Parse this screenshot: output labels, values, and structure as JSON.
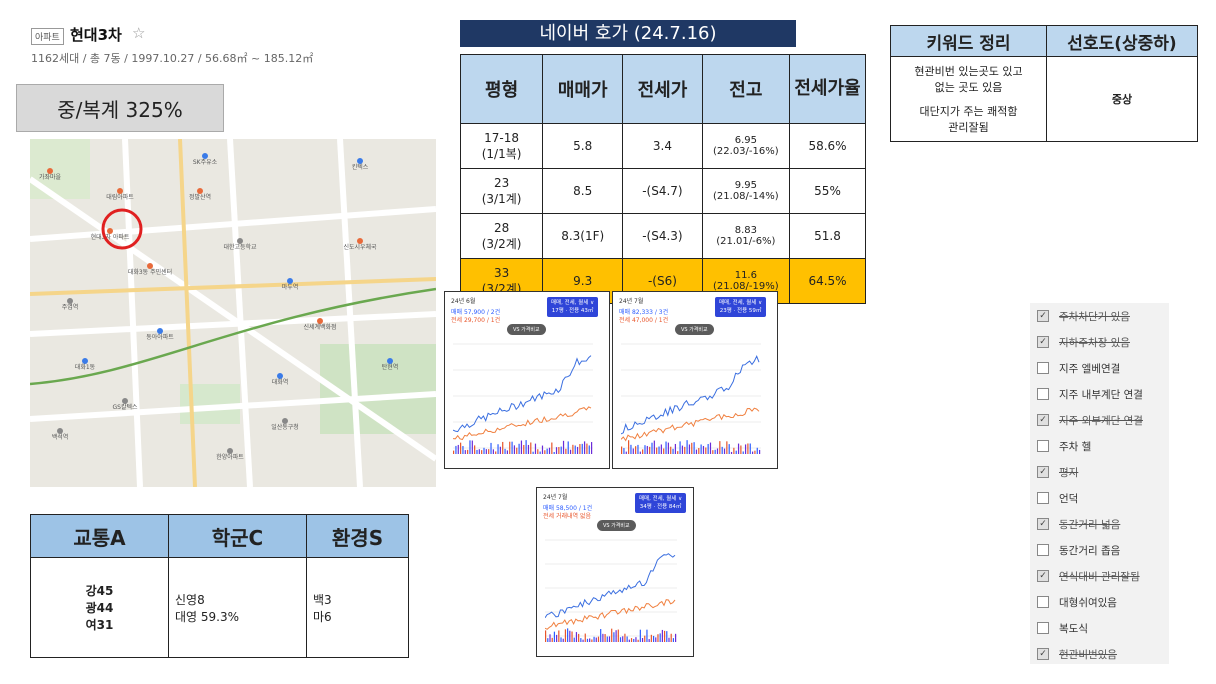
{
  "header": {
    "badge": "아파트",
    "name": "현대3차",
    "star": "☆",
    "meta": "1162세대 / 총 7동 / 1997.10.27 / 56.68㎡ ~ 185.12㎡",
    "ratio": "중/복계 325%"
  },
  "price_table": {
    "title": "네이버 호가 (24.7.16)",
    "headers": [
      "평형",
      "매매가",
      "전세가",
      "전고",
      "전세가율"
    ],
    "rows": [
      {
        "type": "17-18",
        "type2": "(1/1복)",
        "sale": "5.8",
        "jeonse": "3.4",
        "peak": "6.95",
        "peak_note": "(22.03/-16%)",
        "ratio": "58.6%"
      },
      {
        "type": "23",
        "type2": "(3/1계)",
        "sale": "8.5",
        "jeonse": "-(S4.7)",
        "peak": "9.95",
        "peak_note": "(21.08/-14%)",
        "ratio": "55%"
      },
      {
        "type": "28",
        "type2": "(3/2계)",
        "sale": "8.3(1F)",
        "jeonse": "-(S4.3)",
        "peak": "8.83",
        "peak_note": "(21.01/-6%)",
        "ratio": "51.8"
      },
      {
        "type": "33",
        "type2": "(3/2계)",
        "sale": "9.3",
        "jeonse": "-(S6)",
        "peak": "11.6",
        "peak_note": "(21.08/-19%)",
        "ratio": "64.5%"
      }
    ]
  },
  "keyword_table": {
    "headers": [
      "키워드 정리",
      "선호도(상중하)"
    ],
    "keyword_lines": [
      "현관비번 있는곳도 있고",
      "없는 곳도 있음",
      "",
      "대단지가 주는 쾌적함",
      "관리잘됨"
    ],
    "preference": "중상"
  },
  "scores": {
    "headers": [
      "교통A",
      "학군C",
      "환경S"
    ],
    "traffic": [
      "강45",
      "광44",
      "여31"
    ],
    "school": [
      "신영8",
      "대영 59.3%"
    ],
    "env": [
      "백3",
      "마6"
    ]
  },
  "checklist": [
    {
      "label": "주차차단기 있음",
      "checked": true
    },
    {
      "label": "지하주차장 있음",
      "checked": true
    },
    {
      "label": "지주 엘베연결",
      "checked": false
    },
    {
      "label": "지주 내부계단 연결",
      "checked": false
    },
    {
      "label": "지주 외부계단 연결",
      "checked": true
    },
    {
      "label": "주차 헬",
      "checked": false
    },
    {
      "label": "평지",
      "checked": true
    },
    {
      "label": "언덕",
      "checked": false
    },
    {
      "label": "동간거리 넓음",
      "checked": true
    },
    {
      "label": "동간거리 좁음",
      "checked": false
    },
    {
      "label": "연식대비 관리잘됨",
      "checked": true
    },
    {
      "label": "대형쉬여있음",
      "checked": false
    },
    {
      "label": "복도식",
      "checked": false
    },
    {
      "label": "현관비번있음",
      "checked": true
    }
  ],
  "mini_charts": [
    {
      "period": "24년 6월",
      "sale": "매매 57,900 / 2건",
      "jeonse": "전세 29,700 / 1건",
      "btn1": "매매, 전세, 월세 ∨",
      "btn2": "17평 · 전용 43㎡",
      "vs": "VS 가격비교"
    },
    {
      "period": "24년 7월",
      "sale": "매매 82,333 / 3건",
      "jeonse": "전세 47,000 / 1건",
      "btn1": "매매, 전세, 월세 ∨",
      "btn2": "23평 · 전용 59㎡",
      "vs": "VS 가격비교"
    },
    {
      "period": "24년 7월",
      "sale": "매매 58,500 / 1건",
      "jeonse": "전세 거래내역 없음",
      "btn1": "매매, 전세, 월세 ∨",
      "btn2": "34평 · 전용 84㎡",
      "vs": "VS 가격비교"
    }
  ],
  "map": {
    "labels": [
      "현대3차 아파트",
      "대화역",
      "주엽역",
      "대화3동 주민센터",
      "대화1동",
      "대한고등학교",
      "신세계백화점",
      "킨텍스",
      "일산동구청",
      "정발산역",
      "마두역",
      "백석역",
      "대림아파트",
      "동아아파트",
      "한양아파트",
      "신도시우체국",
      "SK주유소",
      "GS칼텍스",
      "가좌마을",
      "탄현역"
    ],
    "marker_color": "#e02020"
  }
}
